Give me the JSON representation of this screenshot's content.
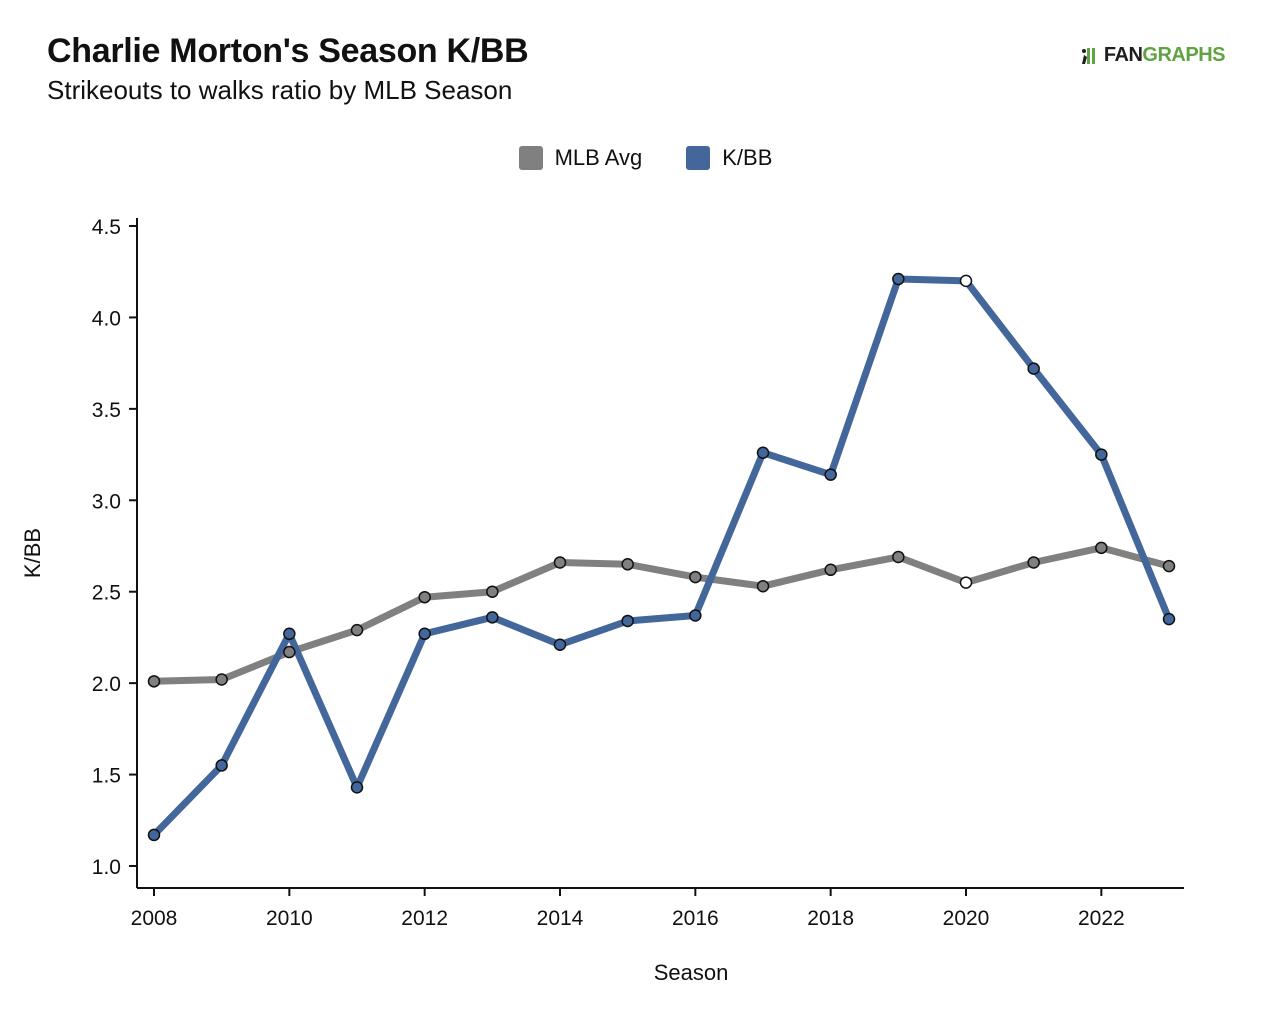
{
  "header": {
    "title": "Charlie Morton's Season K/BB",
    "subtitle": "Strikeouts to walks ratio by MLB Season"
  },
  "logo": {
    "text_dark": "FAN",
    "text_green": "GRAPHS",
    "icon": "fangraphs-runner-logo"
  },
  "colors": {
    "mlb_avg": "#808080",
    "kbb": "#43679a",
    "highlight_point_fill": "#ffffff",
    "axis": "#111111"
  },
  "chart_data": {
    "type": "line",
    "title": "Charlie Morton's Season K/BB",
    "subtitle": "Strikeouts to walks ratio by MLB Season",
    "xlabel": "Season",
    "ylabel": "K/BB",
    "x": [
      2008,
      2009,
      2010,
      2011,
      2012,
      2013,
      2014,
      2015,
      2016,
      2017,
      2018,
      2019,
      2020,
      2021,
      2022,
      2023
    ],
    "xlim": [
      2008,
      2023.2
    ],
    "ylim": [
      0.9,
      4.55
    ],
    "xticks": [
      2008,
      2010,
      2012,
      2014,
      2016,
      2018,
      2020,
      2022
    ],
    "xtick_labels": [
      "2008",
      "2010",
      "2012",
      "2014",
      "2016",
      "2018",
      "2020",
      "2022"
    ],
    "yticks": [
      1.0,
      1.5,
      2.0,
      2.5,
      3.0,
      3.5,
      4.0,
      4.5
    ],
    "ytick_labels": [
      "1.0",
      "1.5",
      "2.0",
      "2.5",
      "3.0",
      "3.5",
      "4.0",
      "4.5"
    ],
    "grid": false,
    "legend_position": "top-center",
    "highlight_x": 2020,
    "series": [
      {
        "name": "MLB Avg",
        "color": "#808080",
        "values": [
          2.01,
          2.02,
          2.17,
          2.29,
          2.47,
          2.5,
          2.66,
          2.65,
          2.58,
          2.53,
          2.62,
          2.69,
          2.55,
          2.66,
          2.74,
          2.64
        ]
      },
      {
        "name": "K/BB",
        "color": "#43679a",
        "values": [
          1.17,
          1.55,
          2.27,
          1.43,
          2.27,
          2.36,
          2.21,
          2.34,
          2.37,
          3.26,
          3.14,
          4.21,
          4.2,
          3.72,
          3.25,
          2.35
        ]
      }
    ]
  }
}
